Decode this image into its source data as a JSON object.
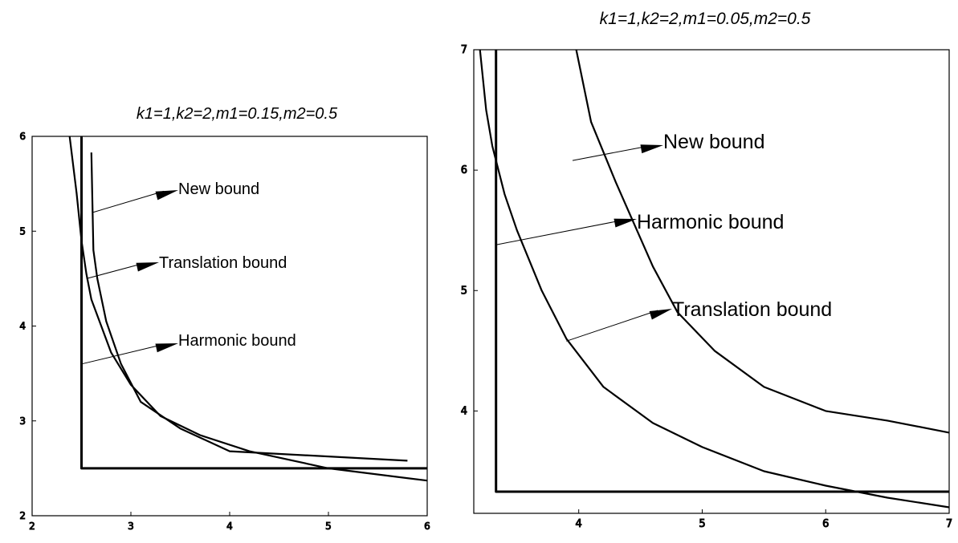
{
  "chart_data": [
    {
      "type": "line",
      "title": "k1=1,k2=2,m1=0.15,m2=0.5",
      "xlim": [
        2,
        6
      ],
      "ylim": [
        2,
        6
      ],
      "x_ticks": [
        "2",
        "3",
        "4",
        "5",
        "6"
      ],
      "y_ticks": [
        "2",
        "3",
        "4",
        "5",
        "6"
      ],
      "series": [
        {
          "name": "New bound",
          "points": [
            [
              2.6,
              5.83
            ],
            [
              2.62,
              4.8
            ],
            [
              2.66,
              4.5
            ],
            [
              2.75,
              4.05
            ],
            [
              2.9,
              3.6
            ],
            [
              3.1,
              3.2
            ],
            [
              3.5,
              2.92
            ],
            [
              4.0,
              2.68
            ],
            [
              5.8,
              2.58
            ]
          ]
        },
        {
          "name": "Translation bound",
          "points": [
            [
              2.38,
              6.0
            ],
            [
              2.45,
              5.4
            ],
            [
              2.5,
              4.9
            ],
            [
              2.55,
              4.55
            ],
            [
              2.6,
              4.28
            ],
            [
              2.7,
              4.0
            ],
            [
              2.8,
              3.72
            ],
            [
              3.0,
              3.38
            ],
            [
              3.3,
              3.05
            ],
            [
              3.7,
              2.85
            ],
            [
              4.2,
              2.68
            ],
            [
              5.0,
              2.5
            ],
            [
              6.0,
              2.37
            ]
          ]
        },
        {
          "name": "Harmonic bound",
          "points": [
            [
              2.5,
              6.0
            ],
            [
              2.5,
              2.5
            ],
            [
              6.0,
              2.5
            ]
          ]
        }
      ],
      "annotations": [
        {
          "text": "New bound",
          "x": 2.62,
          "y": 5.2
        },
        {
          "text": "Translation bound",
          "x": 2.55,
          "y": 4.5
        },
        {
          "text": "Harmonic bound",
          "x": 2.5,
          "y": 3.6
        }
      ]
    },
    {
      "type": "line",
      "title": "k1=1,k2=2,m1=0.05,m2=0.5",
      "xlim": [
        3.15,
        7
      ],
      "ylim": [
        3.15,
        7
      ],
      "x_ticks": [
        "4",
        "5",
        "6",
        "7"
      ],
      "y_ticks": [
        "4",
        "5",
        "6",
        "7"
      ],
      "series": [
        {
          "name": "New bound",
          "points": [
            [
              3.98,
              7.0
            ],
            [
              4.1,
              6.4
            ],
            [
              4.3,
              5.9
            ],
            [
              4.6,
              5.2
            ],
            [
              4.8,
              4.82
            ],
            [
              5.1,
              4.5
            ],
            [
              5.5,
              4.2
            ],
            [
              6.0,
              4.0
            ],
            [
              6.5,
              3.92
            ],
            [
              7.0,
              3.82
            ]
          ]
        },
        {
          "name": "Translation bound",
          "points": [
            [
              3.2,
              7.0
            ],
            [
              3.25,
              6.5
            ],
            [
              3.3,
              6.2
            ],
            [
              3.4,
              5.8
            ],
            [
              3.5,
              5.5
            ],
            [
              3.7,
              5.0
            ],
            [
              3.9,
              4.6
            ],
            [
              4.2,
              4.2
            ],
            [
              4.6,
              3.9
            ],
            [
              5.0,
              3.7
            ],
            [
              5.5,
              3.5
            ],
            [
              6.0,
              3.38
            ],
            [
              6.5,
              3.28
            ],
            [
              7.0,
              3.2
            ]
          ]
        },
        {
          "name": "Harmonic bound",
          "points": [
            [
              3.33,
              7.0
            ],
            [
              3.33,
              3.33
            ],
            [
              7.0,
              3.33
            ]
          ]
        }
      ],
      "annotations": [
        {
          "text": "New bound",
          "x": 3.95,
          "y": 6.08
        },
        {
          "text": "Harmonic bound",
          "x": 3.33,
          "y": 5.38
        },
        {
          "text": "Translation bound",
          "x": 3.9,
          "y": 4.58
        }
      ]
    }
  ]
}
